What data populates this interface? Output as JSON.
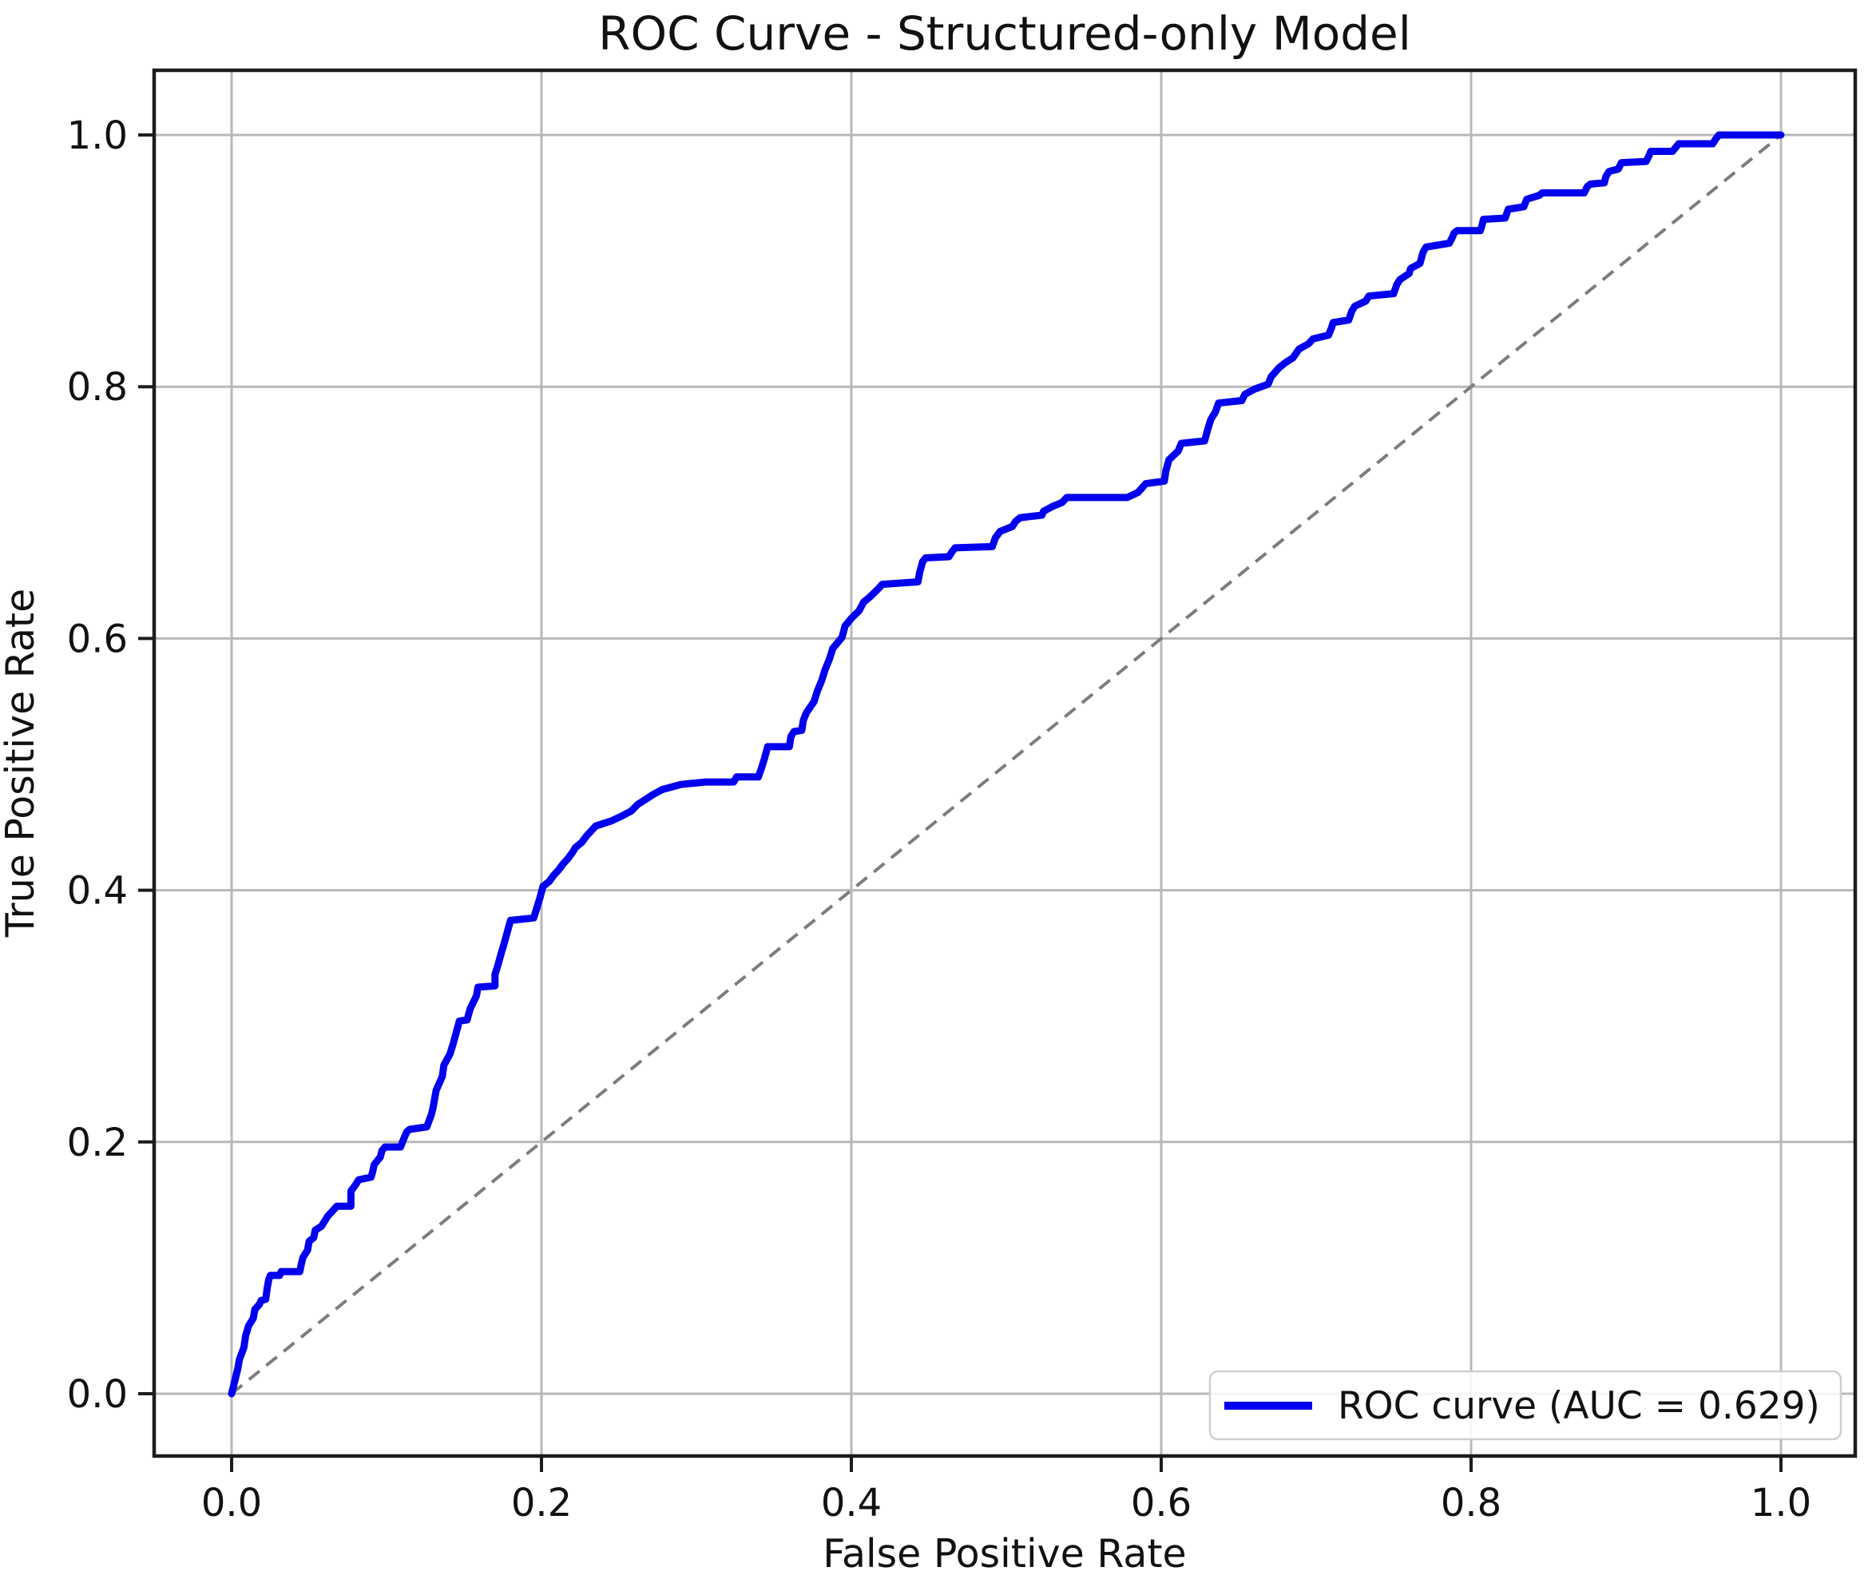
{
  "chart_data": {
    "type": "line",
    "title": "ROC Curve - Structured-only Model",
    "xlabel": "False Positive Rate",
    "ylabel": "True Positive Rate",
    "xlim": [
      0.0,
      1.0
    ],
    "ylim": [
      0.0,
      1.0
    ],
    "grid": true,
    "x_tick_values": [
      0.0,
      0.2,
      0.4,
      0.6,
      0.8,
      1.0
    ],
    "x_tick_labels": [
      "0.0",
      "0.2",
      "0.4",
      "0.6",
      "0.8",
      "1.0"
    ],
    "y_tick_values": [
      0.0,
      0.2,
      0.4,
      0.6,
      0.8,
      1.0
    ],
    "y_tick_labels": [
      "0.0",
      "0.2",
      "0.4",
      "0.6",
      "0.8",
      "1.0"
    ],
    "auc": 0.629,
    "legend": {
      "position": "lower right",
      "entries": [
        {
          "label": "ROC curve (AUC = 0.629)",
          "color": "#0000ee",
          "style": "solid"
        }
      ]
    },
    "colors": {
      "roc_curve": "#0000ee",
      "diagonal_reference": "#7d7d7d",
      "grid": "#b8b8b8",
      "spine": "#1c1c1c",
      "text": "#111111",
      "legend_border": "#cfcfcf",
      "legend_background": "rgba(255,255,255,0.85)"
    },
    "series": [
      {
        "name": "ROC curve (AUC = 0.629)",
        "line_style": "solid",
        "color": "#0000ee",
        "points": [
          [
            0.0,
            0.0
          ],
          [
            0.004,
            0.02
          ],
          [
            0.005,
            0.027
          ],
          [
            0.008,
            0.037
          ],
          [
            0.009,
            0.046
          ],
          [
            0.011,
            0.054
          ],
          [
            0.014,
            0.06
          ],
          [
            0.015,
            0.067
          ],
          [
            0.018,
            0.071
          ],
          [
            0.019,
            0.074
          ],
          [
            0.022,
            0.075
          ],
          [
            0.023,
            0.084
          ],
          [
            0.024,
            0.091
          ],
          [
            0.025,
            0.094
          ],
          [
            0.031,
            0.094
          ],
          [
            0.032,
            0.097
          ],
          [
            0.044,
            0.097
          ],
          [
            0.045,
            0.103
          ],
          [
            0.046,
            0.108
          ],
          [
            0.049,
            0.114
          ],
          [
            0.05,
            0.121
          ],
          [
            0.053,
            0.124
          ],
          [
            0.054,
            0.13
          ],
          [
            0.058,
            0.133
          ],
          [
            0.062,
            0.141
          ],
          [
            0.065,
            0.145
          ],
          [
            0.068,
            0.149
          ],
          [
            0.077,
            0.149
          ],
          [
            0.077,
            0.161
          ],
          [
            0.08,
            0.166
          ],
          [
            0.082,
            0.17
          ],
          [
            0.09,
            0.172
          ],
          [
            0.091,
            0.176
          ],
          [
            0.092,
            0.182
          ],
          [
            0.096,
            0.188
          ],
          [
            0.097,
            0.193
          ],
          [
            0.099,
            0.196
          ],
          [
            0.109,
            0.196
          ],
          [
            0.111,
            0.202
          ],
          [
            0.113,
            0.208
          ],
          [
            0.115,
            0.21
          ],
          [
            0.126,
            0.212
          ],
          [
            0.129,
            0.222
          ],
          [
            0.13,
            0.227
          ],
          [
            0.132,
            0.241
          ],
          [
            0.136,
            0.252
          ],
          [
            0.137,
            0.261
          ],
          [
            0.141,
            0.27
          ],
          [
            0.143,
            0.278
          ],
          [
            0.145,
            0.287
          ],
          [
            0.147,
            0.296
          ],
          [
            0.152,
            0.297
          ],
          [
            0.154,
            0.306
          ],
          [
            0.158,
            0.316
          ],
          [
            0.159,
            0.323
          ],
          [
            0.17,
            0.324
          ],
          [
            0.17,
            0.333
          ],
          [
            0.172,
            0.341
          ],
          [
            0.174,
            0.35
          ],
          [
            0.176,
            0.358
          ],
          [
            0.178,
            0.367
          ],
          [
            0.18,
            0.376
          ],
          [
            0.195,
            0.378
          ],
          [
            0.197,
            0.386
          ],
          [
            0.199,
            0.394
          ],
          [
            0.201,
            0.403
          ],
          [
            0.205,
            0.407
          ],
          [
            0.208,
            0.412
          ],
          [
            0.211,
            0.416
          ],
          [
            0.214,
            0.421
          ],
          [
            0.217,
            0.425
          ],
          [
            0.22,
            0.43
          ],
          [
            0.222,
            0.434
          ],
          [
            0.226,
            0.438
          ],
          [
            0.229,
            0.443
          ],
          [
            0.232,
            0.447
          ],
          [
            0.235,
            0.451
          ],
          [
            0.245,
            0.455
          ],
          [
            0.252,
            0.459
          ],
          [
            0.258,
            0.463
          ],
          [
            0.262,
            0.468
          ],
          [
            0.267,
            0.472
          ],
          [
            0.272,
            0.476
          ],
          [
            0.278,
            0.48
          ],
          [
            0.284,
            0.482
          ],
          [
            0.29,
            0.484
          ],
          [
            0.298,
            0.485
          ],
          [
            0.306,
            0.486
          ],
          [
            0.324,
            0.486
          ],
          [
            0.326,
            0.49
          ],
          [
            0.34,
            0.49
          ],
          [
            0.342,
            0.497
          ],
          [
            0.344,
            0.505
          ],
          [
            0.346,
            0.514
          ],
          [
            0.36,
            0.514
          ],
          [
            0.361,
            0.522
          ],
          [
            0.363,
            0.526
          ],
          [
            0.368,
            0.527
          ],
          [
            0.369,
            0.535
          ],
          [
            0.371,
            0.541
          ],
          [
            0.376,
            0.55
          ],
          [
            0.378,
            0.558
          ],
          [
            0.381,
            0.567
          ],
          [
            0.383,
            0.575
          ],
          [
            0.386,
            0.584
          ],
          [
            0.388,
            0.592
          ],
          [
            0.394,
            0.601
          ],
          [
            0.396,
            0.61
          ],
          [
            0.4,
            0.616
          ],
          [
            0.405,
            0.622
          ],
          [
            0.408,
            0.629
          ],
          [
            0.412,
            0.633
          ],
          [
            0.417,
            0.639
          ],
          [
            0.42,
            0.643
          ],
          [
            0.443,
            0.645
          ],
          [
            0.444,
            0.652
          ],
          [
            0.446,
            0.661
          ],
          [
            0.448,
            0.664
          ],
          [
            0.463,
            0.665
          ],
          [
            0.465,
            0.669
          ],
          [
            0.467,
            0.672
          ],
          [
            0.491,
            0.673
          ],
          [
            0.493,
            0.68
          ],
          [
            0.496,
            0.685
          ],
          [
            0.504,
            0.689
          ],
          [
            0.506,
            0.693
          ],
          [
            0.509,
            0.696
          ],
          [
            0.523,
            0.698
          ],
          [
            0.524,
            0.701
          ],
          [
            0.53,
            0.705
          ],
          [
            0.536,
            0.708
          ],
          [
            0.539,
            0.712
          ],
          [
            0.578,
            0.712
          ],
          [
            0.585,
            0.716
          ],
          [
            0.59,
            0.723
          ],
          [
            0.602,
            0.725
          ],
          [
            0.603,
            0.733
          ],
          [
            0.605,
            0.742
          ],
          [
            0.611,
            0.749
          ],
          [
            0.613,
            0.755
          ],
          [
            0.628,
            0.757
          ],
          [
            0.63,
            0.766
          ],
          [
            0.632,
            0.774
          ],
          [
            0.635,
            0.78
          ],
          [
            0.637,
            0.787
          ],
          [
            0.652,
            0.789
          ],
          [
            0.654,
            0.794
          ],
          [
            0.66,
            0.798
          ],
          [
            0.669,
            0.802
          ],
          [
            0.671,
            0.808
          ],
          [
            0.676,
            0.815
          ],
          [
            0.68,
            0.819
          ],
          [
            0.685,
            0.823
          ],
          [
            0.689,
            0.83
          ],
          [
            0.695,
            0.834
          ],
          [
            0.698,
            0.838
          ],
          [
            0.708,
            0.841
          ],
          [
            0.71,
            0.847
          ],
          [
            0.711,
            0.851
          ],
          [
            0.721,
            0.853
          ],
          [
            0.723,
            0.86
          ],
          [
            0.725,
            0.864
          ],
          [
            0.732,
            0.868
          ],
          [
            0.734,
            0.872
          ],
          [
            0.75,
            0.874
          ],
          [
            0.752,
            0.881
          ],
          [
            0.754,
            0.885
          ],
          [
            0.76,
            0.89
          ],
          [
            0.761,
            0.894
          ],
          [
            0.767,
            0.898
          ],
          [
            0.769,
            0.907
          ],
          [
            0.771,
            0.911
          ],
          [
            0.786,
            0.914
          ],
          [
            0.788,
            0.919
          ],
          [
            0.789,
            0.922
          ],
          [
            0.791,
            0.924
          ],
          [
            0.806,
            0.924
          ],
          [
            0.807,
            0.928
          ],
          [
            0.808,
            0.933
          ],
          [
            0.822,
            0.934
          ],
          [
            0.824,
            0.941
          ],
          [
            0.834,
            0.943
          ],
          [
            0.836,
            0.949
          ],
          [
            0.844,
            0.952
          ],
          [
            0.846,
            0.954
          ],
          [
            0.873,
            0.954
          ],
          [
            0.875,
            0.959
          ],
          [
            0.877,
            0.961
          ],
          [
            0.886,
            0.962
          ],
          [
            0.887,
            0.967
          ],
          [
            0.889,
            0.971
          ],
          [
            0.895,
            0.973
          ],
          [
            0.897,
            0.978
          ],
          [
            0.913,
            0.979
          ],
          [
            0.915,
            0.984
          ],
          [
            0.916,
            0.987
          ],
          [
            0.93,
            0.987
          ],
          [
            0.932,
            0.99
          ],
          [
            0.934,
            0.993
          ],
          [
            0.956,
            0.993
          ],
          [
            0.958,
            0.997
          ],
          [
            0.96,
            1.0
          ],
          [
            1.0,
            1.0
          ]
        ]
      },
      {
        "name": "chance-diagonal",
        "line_style": "dashed",
        "color": "#7d7d7d",
        "points": [
          [
            0.0,
            0.0
          ],
          [
            1.0,
            1.0
          ]
        ]
      }
    ]
  }
}
